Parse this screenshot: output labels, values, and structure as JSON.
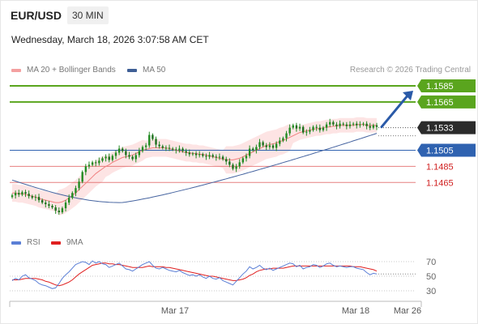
{
  "header": {
    "symbol": "EUR/USD",
    "timeframe": "30 MIN",
    "datetime": "Wednesday, March 18, 2026 3:07:58 AM CET"
  },
  "legend": {
    "ma20_label": "MA 20 + Bollinger Bands",
    "ma50_label": "MA 50",
    "credit": "Research © 2026 Trading Central",
    "rsi_label": "RSI",
    "rsi_ma_label": "9MA"
  },
  "colors": {
    "resistance": "#5aa51e",
    "support": "#e06060",
    "pivot": "#2f62b0",
    "current": "#2b2b2b",
    "ma20": "#f08080",
    "ma50": "#4664a0",
    "band_fill": "#fde4e4",
    "rsi": "#5b7fd6",
    "rsi_ma": "#e02020",
    "candle": "#228b22",
    "arrow": "#2a5aa8"
  },
  "chart_data": [
    {
      "type": "candlestick",
      "title": "EUR/USD",
      "interval": "30 MIN",
      "y_range": [
        1.142,
        1.159
      ],
      "x_ticks": [
        "Mar 17",
        "Mar 18",
        "Mar 26"
      ],
      "levels": [
        {
          "value": 1.1585,
          "label": "1.1585",
          "kind": "resistance",
          "boxed": true
        },
        {
          "value": 1.1565,
          "label": "1.1565",
          "kind": "resistance",
          "boxed": true
        },
        {
          "value": 1.1533,
          "label": "1.1533",
          "kind": "current",
          "boxed": true
        },
        {
          "value": 1.1505,
          "label": "1.1505",
          "kind": "pivot",
          "boxed": true
        },
        {
          "value": 1.1485,
          "label": "1.1485",
          "kind": "support",
          "boxed": false
        },
        {
          "value": 1.1465,
          "label": "1.1465",
          "kind": "support",
          "boxed": false
        }
      ],
      "close": [
        1.1449,
        1.1452,
        1.145,
        1.1453,
        1.1451,
        1.1448,
        1.1446,
        1.1447,
        1.1443,
        1.144,
        1.1438,
        1.1436,
        1.1434,
        1.143,
        1.1428,
        1.1433,
        1.144,
        1.1446,
        1.1452,
        1.1458,
        1.1466,
        1.1478,
        1.1485,
        1.1487,
        1.149,
        1.1489,
        1.1492,
        1.1495,
        1.1497,
        1.1493,
        1.1498,
        1.1502,
        1.1507,
        1.1504,
        1.1499,
        1.1497,
        1.1494,
        1.1499,
        1.1504,
        1.1509,
        1.1511,
        1.1524,
        1.1519,
        1.1512,
        1.151,
        1.1508,
        1.1508,
        1.1507,
        1.1506,
        1.1505,
        1.1507,
        1.1504,
        1.1502,
        1.15,
        1.1501,
        1.1499,
        1.15,
        1.1498,
        1.1497,
        1.1499,
        1.1497,
        1.1496,
        1.1497,
        1.1494,
        1.1491,
        1.1487,
        1.1482,
        1.1485,
        1.149,
        1.1495,
        1.1498,
        1.1507,
        1.1505,
        1.1509,
        1.1515,
        1.1511,
        1.1509,
        1.1511,
        1.1508,
        1.1513,
        1.1517,
        1.152,
        1.1526,
        1.1533,
        1.1536,
        1.1532,
        1.1534,
        1.1527,
        1.1528,
        1.153,
        1.1534,
        1.1533,
        1.153,
        1.1533,
        1.1537,
        1.154,
        1.1537,
        1.1535,
        1.1538,
        1.1537,
        1.1535,
        1.1537,
        1.1538,
        1.1536,
        1.1537,
        1.1538,
        1.1535,
        1.1533,
        1.1536,
        1.1534
      ],
      "ma20": [
        1.1452,
        1.1452,
        1.1451,
        1.1451,
        1.145,
        1.1449,
        1.1448,
        1.1447,
        1.1445,
        1.1444,
        1.1443,
        1.1442,
        1.1441,
        1.144,
        1.144,
        1.1441,
        1.1443,
        1.1446,
        1.1449,
        1.1452,
        1.1456,
        1.146,
        1.1464,
        1.1468,
        1.1472,
        1.1476,
        1.1479,
        1.1482,
        1.1485,
        1.1487,
        1.149,
        1.1492,
        1.1494,
        1.1496,
        1.1497,
        1.1498,
        1.1499,
        1.1501,
        1.1503,
        1.1505,
        1.1506,
        1.1507,
        1.1508,
        1.1508,
        1.1508,
        1.1508,
        1.1508,
        1.1507,
        1.1506,
        1.1505,
        1.1504,
        1.1503,
        1.1502,
        1.1502,
        1.1501,
        1.1501,
        1.15,
        1.15,
        1.1499,
        1.1498,
        1.1497,
        1.1496,
        1.1495,
        1.1494,
        1.1493,
        1.1493,
        1.1493,
        1.1494,
        1.1495,
        1.1497,
        1.1499,
        1.1501,
        1.1503,
        1.1505,
        1.1507,
        1.1509,
        1.1511,
        1.1512,
        1.1513,
        1.1514,
        1.1516,
        1.1517,
        1.1519,
        1.1521,
        1.1523,
        1.1525,
        1.1527,
        1.1528,
        1.1529,
        1.153,
        1.1531,
        1.1532,
        1.1532,
        1.1533,
        1.1534,
        1.1534,
        1.1535,
        1.1535,
        1.1536,
        1.1536,
        1.1536,
        1.1536,
        1.1536,
        1.1537,
        1.1537,
        1.1537,
        1.1536,
        1.1536,
        1.1536,
        1.1536
      ],
      "ma50_start": 1.1468,
      "ma50_low": 1.144,
      "ma50_end": 1.1526
    },
    {
      "type": "line",
      "title": "RSI",
      "y_ticks": [
        70,
        50,
        30
      ],
      "series": [
        {
          "name": "RSI",
          "values": [
            44,
            47,
            45,
            50,
            52,
            48,
            46,
            44,
            40,
            38,
            37,
            35,
            33,
            34,
            40,
            47,
            52,
            56,
            61,
            66,
            68,
            70,
            69,
            66,
            71,
            68,
            70,
            67,
            66,
            62,
            64,
            66,
            68,
            64,
            60,
            59,
            57,
            60,
            63,
            66,
            68,
            70,
            65,
            61,
            60,
            62,
            60,
            58,
            57,
            56,
            58,
            55,
            53,
            51,
            52,
            50,
            52,
            49,
            47,
            50,
            47,
            46,
            48,
            44,
            42,
            40,
            38,
            43,
            48,
            53,
            57,
            63,
            60,
            62,
            65,
            61,
            59,
            61,
            58,
            60,
            62,
            64,
            66,
            68,
            67,
            63,
            65,
            60,
            62,
            63,
            66,
            65,
            62,
            64,
            67,
            68,
            65,
            63,
            64,
            63,
            62,
            63,
            63,
            61,
            60,
            59,
            55,
            52,
            54,
            53
          ]
        },
        {
          "name": "9MA",
          "values": [
            45,
            45,
            45,
            46,
            47,
            47,
            47,
            47,
            46,
            45,
            43,
            42,
            40,
            38,
            37,
            38,
            40,
            42,
            45,
            49,
            53,
            56,
            59,
            62,
            65,
            66,
            67,
            68,
            68,
            67,
            67,
            66,
            66,
            65,
            64,
            63,
            62,
            62,
            62,
            62,
            63,
            64,
            63,
            63,
            63,
            63,
            62,
            62,
            61,
            60,
            59,
            58,
            57,
            56,
            55,
            54,
            53,
            52,
            51,
            50,
            50,
            49,
            48,
            47,
            46,
            45,
            44,
            44,
            45,
            46,
            48,
            51,
            53,
            56,
            58,
            59,
            60,
            60,
            61,
            61,
            61,
            61,
            62,
            63,
            64,
            64,
            64,
            64,
            64,
            64,
            64,
            64,
            64,
            64,
            64,
            64,
            64,
            64,
            64,
            64,
            64,
            64,
            63,
            63,
            63,
            62,
            61,
            60,
            59,
            57
          ]
        }
      ]
    }
  ]
}
